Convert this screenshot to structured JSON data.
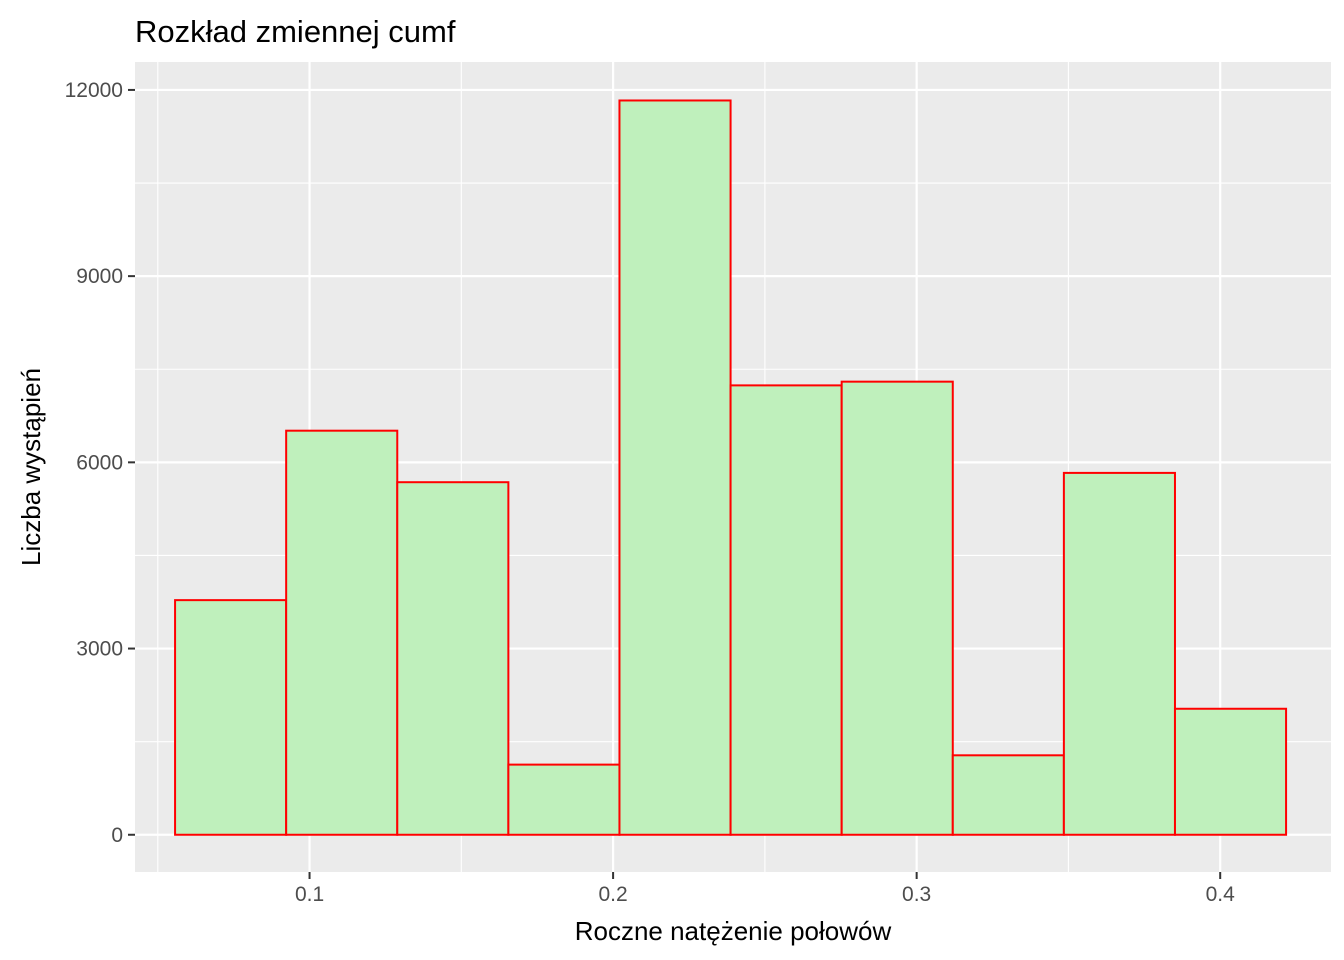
{
  "chart_data": {
    "type": "bar",
    "subtype": "histogram",
    "title": "Rozkład zmiennej cumf",
    "xlabel": "Roczne natężenie połowów",
    "ylabel": "Liczba wystąpień",
    "x_ticks": [
      0.1,
      0.2,
      0.3,
      0.4
    ],
    "x_tick_labels": [
      "0.1",
      "0.2",
      "0.3",
      "0.4"
    ],
    "y_ticks": [
      0,
      3000,
      6000,
      9000,
      12000
    ],
    "y_tick_labels": [
      "0",
      "3000",
      "6000",
      "9000",
      "12000"
    ],
    "xlim": [
      0.0425,
      0.4365
    ],
    "ylim": [
      -600,
      12450
    ],
    "bins": [
      {
        "x_start": 0.0557,
        "x_end": 0.0923,
        "count": 3780
      },
      {
        "x_start": 0.0923,
        "x_end": 0.1289,
        "count": 6510
      },
      {
        "x_start": 0.1289,
        "x_end": 0.1655,
        "count": 5680
      },
      {
        "x_start": 0.1655,
        "x_end": 0.2021,
        "count": 1130
      },
      {
        "x_start": 0.2021,
        "x_end": 0.2387,
        "count": 11830
      },
      {
        "x_start": 0.2387,
        "x_end": 0.2753,
        "count": 7240
      },
      {
        "x_start": 0.2753,
        "x_end": 0.3119,
        "count": 7300
      },
      {
        "x_start": 0.3119,
        "x_end": 0.3485,
        "count": 1280
      },
      {
        "x_start": 0.3485,
        "x_end": 0.3851,
        "count": 5830
      },
      {
        "x_start": 0.3851,
        "x_end": 0.4217,
        "count": 2030
      }
    ],
    "grid": true,
    "legend": "none",
    "colors": {
      "panel_background": "#ebebeb",
      "grid_major": "#ffffff",
      "bar_fill": "#bff0bc",
      "bar_outline": "#ff0000"
    }
  }
}
